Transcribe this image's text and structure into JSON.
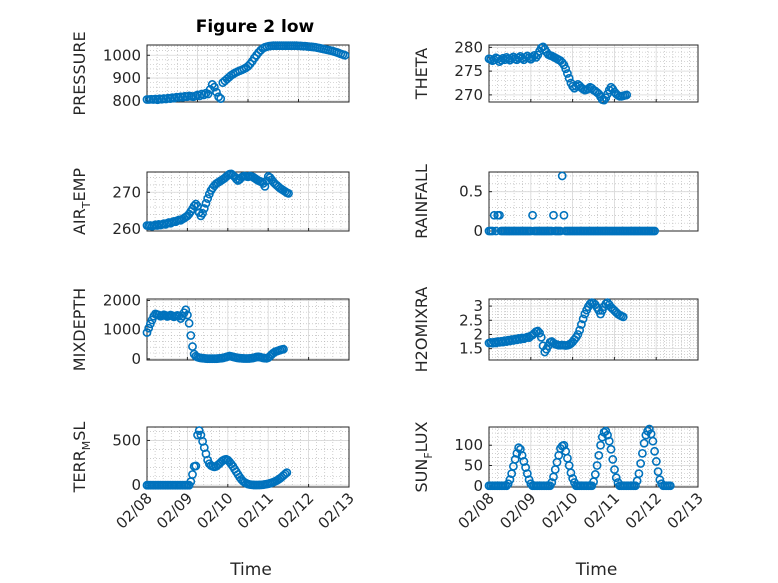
{
  "figure": {
    "title": "Figure 2 low"
  },
  "colors": {
    "marker": "#0072BD",
    "axis": "#262626",
    "grid": "#b0b0b0"
  },
  "chart_data": [
    {
      "id": "pressure",
      "type": "scatter",
      "title": "Figure 2 low",
      "ylabel": "PRESSURE",
      "xlim": [
        "02/08",
        "02/12"
      ],
      "ylim": [
        795,
        1045
      ],
      "yticks": [
        800,
        900,
        1000
      ],
      "x_start": "02/08",
      "x_step_days": 0.0417,
      "values": [
        806,
        806,
        807,
        806,
        808,
        805,
        809,
        807,
        810,
        808,
        812,
        810,
        814,
        812,
        816,
        815,
        818,
        816,
        820,
        818,
        822,
        820,
        818,
        822,
        826,
        822,
        830,
        826,
        834,
        830,
        850,
        872,
        860,
        838,
        818,
        810,
        880,
        888,
        896,
        904,
        912,
        918,
        924,
        928,
        932,
        936,
        940,
        945,
        952,
        962,
        974,
        988,
        1000,
        1012,
        1022,
        1030,
        1035,
        1038,
        1040,
        1041,
        1042,
        1042,
        1042,
        1042,
        1042,
        1042,
        1042,
        1042,
        1042,
        1042,
        1042,
        1042,
        1041,
        1041,
        1040,
        1040,
        1039,
        1038,
        1037,
        1036,
        1035,
        1033,
        1031,
        1029,
        1027,
        1025,
        1023,
        1021,
        1019,
        1016,
        1013,
        1010,
        1006,
        1003,
        1000
      ]
    },
    {
      "id": "theta",
      "type": "scatter",
      "ylabel": "THETA",
      "xlim": [
        "02/08",
        "02/13"
      ],
      "ylim": [
        268.5,
        280.5
      ],
      "yticks": [
        270,
        275,
        280
      ],
      "x_start": "02/08",
      "x_step_days": 0.0417,
      "values": [
        277.6,
        277.5,
        277.2,
        277.4,
        277.8,
        277.6,
        277.0,
        277.3,
        277.7,
        277.4,
        277.9,
        277.6,
        277.3,
        277.7,
        278.0,
        277.6,
        277.4,
        277.8,
        278.1,
        277.7,
        277.4,
        277.9,
        278.2,
        277.8,
        277.5,
        277.9,
        278.3,
        277.9,
        278.4,
        279.2,
        279.9,
        280.1,
        279.6,
        279.0,
        278.5,
        278.3,
        278.2,
        278.0,
        277.8,
        277.6,
        277.4,
        277.2,
        276.8,
        276.3,
        275.5,
        274.5,
        273.5,
        272.5,
        271.8,
        271.4,
        271.8,
        272.2,
        271.9,
        271.5,
        271.2,
        271.0,
        271.1,
        271.3,
        271.6,
        271.4,
        271.0,
        270.8,
        270.5,
        270.2,
        269.6,
        269.0,
        268.9,
        269.4,
        270.2,
        271.0,
        271.6,
        271.2,
        270.6,
        270.2,
        269.9,
        269.7,
        269.7,
        269.8,
        269.9,
        270.0
      ]
    },
    {
      "id": "air_temp",
      "type": "scatter",
      "ylabel": "AIR",
      "ylabel_sub": "T",
      "ylabel_tail": "EMP",
      "xlim": [
        "02/08",
        "02/13"
      ],
      "ylim": [
        259.5,
        275.5
      ],
      "yticks": [
        260,
        270
      ],
      "x_start": "02/08",
      "x_step_days": 0.0417,
      "values": [
        261.0,
        260.9,
        261.0,
        260.8,
        261.0,
        261.2,
        261.0,
        261.3,
        261.1,
        261.3,
        261.5,
        261.3,
        261.6,
        261.8,
        261.6,
        261.9,
        262.1,
        262.0,
        262.3,
        262.5,
        262.4,
        262.7,
        263.0,
        263.3,
        263.6,
        264.1,
        264.8,
        265.5,
        266.3,
        266.8,
        266.2,
        264.5,
        263.6,
        264.3,
        265.6,
        267.0,
        268.3,
        269.5,
        270.5,
        271.2,
        271.8,
        272.3,
        272.6,
        272.9,
        273.2,
        273.5,
        273.8,
        274.2,
        274.6,
        274.9,
        275.0,
        274.6,
        274.2,
        273.6,
        273.2,
        273.5,
        274.0,
        274.3,
        274.4,
        274.3,
        274.2,
        274.4,
        274.3,
        274.1,
        273.8,
        273.5,
        273.2,
        273.0,
        272.8,
        272.4,
        271.6,
        273.1,
        274.3,
        274.0,
        273.4,
        272.8,
        272.3,
        271.9,
        271.5,
        271.1,
        270.8,
        270.5,
        270.2,
        269.9,
        269.7
      ]
    },
    {
      "id": "rainfall",
      "type": "scatter",
      "ylabel": "RAINFALL",
      "xlim": [
        "02/08",
        "02/13"
      ],
      "ylim": [
        0,
        0.75
      ],
      "yticks": [
        0,
        0.5
      ],
      "x_start": "02/08",
      "x_step_days": 0.0417,
      "values": [
        0,
        0,
        0,
        0.2,
        0,
        0.2,
        0.2,
        0,
        0,
        0,
        0,
        0,
        0,
        0,
        0,
        0,
        0,
        0,
        0,
        0,
        0,
        0,
        0,
        0,
        0,
        0.2,
        0,
        0,
        0,
        0,
        0,
        0,
        0,
        0,
        0,
        0,
        0,
        0.2,
        0,
        0,
        0,
        0,
        0.7,
        0.2,
        0,
        0,
        0,
        0,
        0,
        0,
        0,
        0,
        0,
        0,
        0,
        0,
        0,
        0,
        0,
        0,
        0,
        0,
        0,
        0,
        0,
        0,
        0,
        0,
        0,
        0,
        0,
        0,
        0,
        0,
        0,
        0,
        0,
        0,
        0,
        0,
        0,
        0,
        0,
        0,
        0,
        0,
        0,
        0,
        0,
        0,
        0,
        0,
        0,
        0,
        0,
        0
      ]
    },
    {
      "id": "mixdepth",
      "type": "scatter",
      "ylabel": "MIXDEPTH",
      "xlim": [
        "02/08",
        "02/13"
      ],
      "ylim": [
        -40,
        2050
      ],
      "yticks": [
        0,
        1000,
        2000
      ],
      "x_start": "02/08",
      "x_step_days": 0.0417,
      "values": [
        900,
        1050,
        1200,
        1330,
        1460,
        1540,
        1520,
        1500,
        1460,
        1480,
        1510,
        1490,
        1450,
        1470,
        1500,
        1480,
        1440,
        1460,
        1490,
        1470,
        1380,
        1460,
        1580,
        1680,
        1500,
        1220,
        800,
        420,
        160,
        90,
        60,
        40,
        30,
        20,
        15,
        10,
        5,
        5,
        5,
        5,
        5,
        5,
        10,
        15,
        20,
        30,
        45,
        60,
        80,
        95,
        85,
        70,
        55,
        40,
        30,
        22,
        18,
        14,
        12,
        12,
        12,
        14,
        20,
        30,
        45,
        60,
        70,
        60,
        45,
        30,
        22,
        18,
        40,
        90,
        150,
        200,
        240,
        260,
        280,
        300,
        320,
        330
      ]
    },
    {
      "id": "h2omixra",
      "type": "scatter",
      "ylabel": "H2OMIXRA",
      "xlim": [
        "02/08",
        "02/13"
      ],
      "ylim": [
        1.1,
        3.25
      ],
      "yticks": [
        1.5,
        2,
        2.5,
        3
      ],
      "x_start": "02/08",
      "x_step_days": 0.0417,
      "values": [
        1.7,
        1.72,
        1.69,
        1.73,
        1.7,
        1.75,
        1.72,
        1.76,
        1.73,
        1.78,
        1.75,
        1.8,
        1.77,
        1.82,
        1.79,
        1.84,
        1.81,
        1.86,
        1.83,
        1.88,
        1.85,
        1.88,
        1.91,
        1.89,
        1.95,
        1.98,
        2.04,
        2.1,
        2.12,
        2.05,
        1.9,
        1.6,
        1.38,
        1.48,
        1.6,
        1.72,
        1.75,
        1.7,
        1.66,
        1.64,
        1.62,
        1.62,
        1.63,
        1.62,
        1.61,
        1.62,
        1.64,
        1.68,
        1.74,
        1.82,
        1.9,
        2.0,
        2.15,
        2.35,
        2.55,
        2.72,
        2.86,
        2.98,
        3.08,
        3.12,
        3.1,
        3.05,
        2.95,
        2.85,
        2.72,
        2.85,
        2.98,
        3.08,
        3.12,
        3.05,
        2.96,
        2.9,
        2.84,
        2.78,
        2.72,
        2.68,
        2.65,
        2.62
      ]
    },
    {
      "id": "terr_msl",
      "type": "scatter",
      "ylabel": "TERR",
      "ylabel_sub": "M",
      "ylabel_tail": "SL",
      "xlim": [
        "02/08",
        "02/13"
      ],
      "ylim": [
        -20,
        650
      ],
      "yticks": [
        0,
        500
      ],
      "x_start": "02/08",
      "x_step_days": 0.0417,
      "values": [
        0,
        0,
        0,
        0,
        0,
        0,
        0,
        0,
        0,
        0,
        0,
        0,
        0,
        0,
        0,
        0,
        0,
        0,
        0,
        0,
        0,
        0,
        0,
        0,
        0,
        0,
        40,
        120,
        210,
        215,
        560,
        610,
        560,
        490,
        420,
        350,
        280,
        240,
        220,
        210,
        205,
        210,
        225,
        240,
        260,
        275,
        285,
        290,
        280,
        260,
        235,
        210,
        180,
        150,
        120,
        90,
        65,
        45,
        30,
        20,
        12,
        8,
        5,
        3,
        2,
        2,
        2,
        3,
        4,
        6,
        9,
        12,
        16,
        21,
        27,
        34,
        42,
        52,
        63,
        76,
        91,
        108,
        125,
        140
      ]
    },
    {
      "id": "sun_flux",
      "type": "scatter",
      "ylabel": "SUN",
      "ylabel_sub": "F",
      "ylabel_tail": "LUX",
      "xlim": [
        "02/08",
        "02/13"
      ],
      "ylim": [
        -3,
        145
      ],
      "yticks": [
        0,
        50,
        100
      ],
      "x_start": "02/08",
      "x_step_days": 0.0417,
      "values": [
        0,
        0,
        0,
        0,
        0,
        0,
        0,
        0,
        0,
        0,
        0,
        5,
        15,
        30,
        48,
        65,
        80,
        94,
        90,
        75,
        60,
        45,
        30,
        15,
        5,
        0,
        0,
        0,
        0,
        0,
        0,
        0,
        0,
        0,
        0,
        0,
        8,
        22,
        40,
        58,
        75,
        92,
        98,
        100,
        85,
        68,
        50,
        32,
        18,
        8,
        0,
        0,
        0,
        0,
        0,
        0,
        0,
        0,
        0,
        0,
        10,
        28,
        50,
        75,
        100,
        120,
        132,
        135,
        125,
        110,
        90,
        65,
        40,
        20,
        8,
        0,
        0,
        0,
        0,
        0,
        0,
        0,
        0,
        0,
        0,
        12,
        30,
        55,
        80,
        105,
        125,
        135,
        140,
        128,
        110,
        85,
        60,
        35,
        15,
        5,
        0,
        0,
        0,
        0,
        0
      ]
    }
  ],
  "axes": {
    "xticklabels": [
      "02/08",
      "02/09",
      "02/10",
      "02/11",
      "02/12",
      "02/13"
    ],
    "xlabel": "Time"
  }
}
